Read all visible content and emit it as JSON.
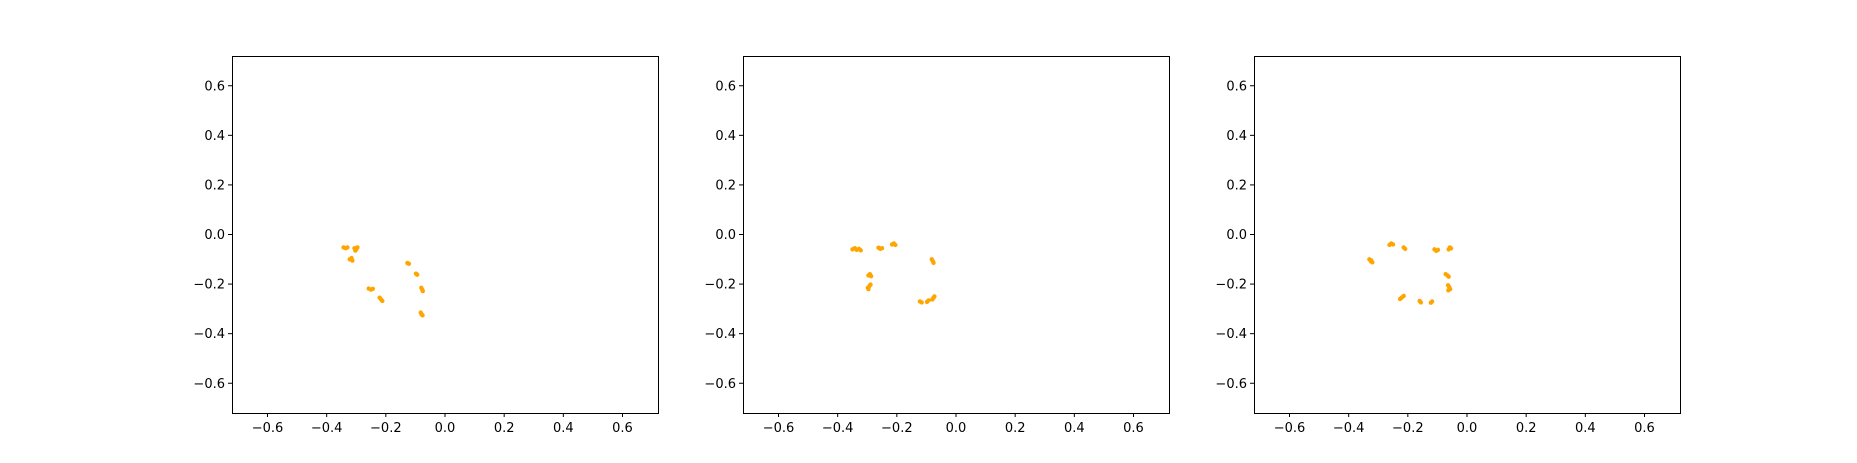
{
  "colors": {
    "points": "#FFA500",
    "axes": "#000000",
    "background": "#FFFFFF"
  },
  "chart_data": [
    {
      "type": "scatter",
      "title": "",
      "xlabel": "",
      "ylabel": "",
      "xlim": [
        -0.72,
        0.72
      ],
      "ylim": [
        -0.72,
        0.72
      ],
      "xticks": [
        -0.6,
        -0.4,
        -0.2,
        0.0,
        0.2,
        0.4,
        0.6
      ],
      "yticks": [
        -0.6,
        -0.4,
        -0.2,
        0.0,
        0.2,
        0.4,
        0.6
      ],
      "xtick_labels": [
        "−0.6",
        "−0.4",
        "−0.2",
        "0.0",
        "0.2",
        "0.4",
        "0.6"
      ],
      "ytick_labels": [
        "−0.6",
        "−0.4",
        "−0.2",
        "0.0",
        "0.2",
        "0.4",
        "0.6"
      ],
      "grid": false,
      "series": [
        {
          "color": "#FFA500",
          "points": [
            [
              -0.343,
              -0.052
            ],
            [
              -0.336,
              -0.055
            ],
            [
              -0.33,
              -0.052
            ],
            [
              -0.306,
              -0.055
            ],
            [
              -0.3,
              -0.06
            ],
            [
              -0.296,
              -0.052
            ],
            [
              -0.303,
              -0.065
            ],
            [
              -0.322,
              -0.1
            ],
            [
              -0.316,
              -0.095
            ],
            [
              -0.313,
              -0.105
            ],
            [
              -0.258,
              -0.218
            ],
            [
              -0.25,
              -0.222
            ],
            [
              -0.244,
              -0.219
            ],
            [
              -0.221,
              -0.255
            ],
            [
              -0.216,
              -0.262
            ],
            [
              -0.212,
              -0.268
            ],
            [
              -0.127,
              -0.115
            ],
            [
              -0.122,
              -0.118
            ],
            [
              -0.098,
              -0.158
            ],
            [
              -0.094,
              -0.162
            ],
            [
              -0.08,
              -0.215
            ],
            [
              -0.077,
              -0.222
            ],
            [
              -0.075,
              -0.228
            ],
            [
              -0.082,
              -0.315
            ],
            [
              -0.079,
              -0.322
            ],
            [
              -0.076,
              -0.326
            ]
          ]
        }
      ]
    },
    {
      "type": "scatter",
      "title": "",
      "xlabel": "",
      "ylabel": "",
      "xlim": [
        -0.72,
        0.72
      ],
      "ylim": [
        -0.72,
        0.72
      ],
      "xticks": [
        -0.6,
        -0.4,
        -0.2,
        0.0,
        0.2,
        0.4,
        0.6
      ],
      "yticks": [
        -0.6,
        -0.4,
        -0.2,
        0.0,
        0.2,
        0.4,
        0.6
      ],
      "xtick_labels": [
        "−0.6",
        "−0.4",
        "−0.2",
        "0.0",
        "0.2",
        "0.4",
        "0.6"
      ],
      "ytick_labels": [
        "−0.6",
        "−0.4",
        "−0.2",
        "0.0",
        "0.2",
        "0.4",
        "0.6"
      ],
      "grid": false,
      "series": [
        {
          "color": "#FFA500",
          "points": [
            [
              -0.35,
              -0.06
            ],
            [
              -0.342,
              -0.055
            ],
            [
              -0.336,
              -0.062
            ],
            [
              -0.328,
              -0.058
            ],
            [
              -0.322,
              -0.064
            ],
            [
              -0.262,
              -0.053
            ],
            [
              -0.256,
              -0.058
            ],
            [
              -0.25,
              -0.055
            ],
            [
              -0.216,
              -0.04
            ],
            [
              -0.21,
              -0.036
            ],
            [
              -0.205,
              -0.042
            ],
            [
              -0.296,
              -0.165
            ],
            [
              -0.291,
              -0.16
            ],
            [
              -0.287,
              -0.168
            ],
            [
              -0.298,
              -0.215
            ],
            [
              -0.293,
              -0.208
            ],
            [
              -0.289,
              -0.202
            ],
            [
              -0.296,
              -0.22
            ],
            [
              -0.082,
              -0.1
            ],
            [
              -0.078,
              -0.108
            ],
            [
              -0.076,
              -0.114
            ],
            [
              -0.122,
              -0.27
            ],
            [
              -0.116,
              -0.274
            ],
            [
              -0.098,
              -0.272
            ],
            [
              -0.093,
              -0.266
            ],
            [
              -0.08,
              -0.262
            ],
            [
              -0.076,
              -0.255
            ],
            [
              -0.073,
              -0.25
            ]
          ]
        }
      ]
    },
    {
      "type": "scatter",
      "title": "",
      "xlabel": "",
      "ylabel": "",
      "xlim": [
        -0.72,
        0.72
      ],
      "ylim": [
        -0.72,
        0.72
      ],
      "xticks": [
        -0.6,
        -0.4,
        -0.2,
        0.0,
        0.2,
        0.4,
        0.6
      ],
      "yticks": [
        -0.6,
        -0.4,
        -0.2,
        0.0,
        0.2,
        0.4,
        0.6
      ],
      "xtick_labels": [
        "−0.6",
        "−0.4",
        "−0.2",
        "0.0",
        "0.2",
        "0.4",
        "0.6"
      ],
      "ytick_labels": [
        "−0.6",
        "−0.4",
        "−0.2",
        "0.0",
        "0.2",
        "0.4",
        "0.6"
      ],
      "grid": false,
      "series": [
        {
          "color": "#FFA500",
          "points": [
            [
              -0.33,
              -0.1
            ],
            [
              -0.325,
              -0.108
            ],
            [
              -0.32,
              -0.112
            ],
            [
              -0.324,
              -0.104
            ],
            [
              -0.262,
              -0.042
            ],
            [
              -0.256,
              -0.036
            ],
            [
              -0.25,
              -0.04
            ],
            [
              -0.214,
              -0.052
            ],
            [
              -0.209,
              -0.058
            ],
            [
              -0.226,
              -0.26
            ],
            [
              -0.22,
              -0.254
            ],
            [
              -0.214,
              -0.248
            ],
            [
              -0.16,
              -0.268
            ],
            [
              -0.156,
              -0.274
            ],
            [
              -0.122,
              -0.275
            ],
            [
              -0.118,
              -0.27
            ],
            [
              -0.11,
              -0.06
            ],
            [
              -0.104,
              -0.066
            ],
            [
              -0.098,
              -0.062
            ],
            [
              -0.062,
              -0.06
            ],
            [
              -0.058,
              -0.052
            ],
            [
              -0.054,
              -0.056
            ],
            [
              -0.072,
              -0.16
            ],
            [
              -0.066,
              -0.165
            ],
            [
              -0.062,
              -0.17
            ],
            [
              -0.064,
              -0.205
            ],
            [
              -0.06,
              -0.212
            ],
            [
              -0.057,
              -0.22
            ],
            [
              -0.063,
              -0.225
            ]
          ]
        }
      ]
    }
  ]
}
